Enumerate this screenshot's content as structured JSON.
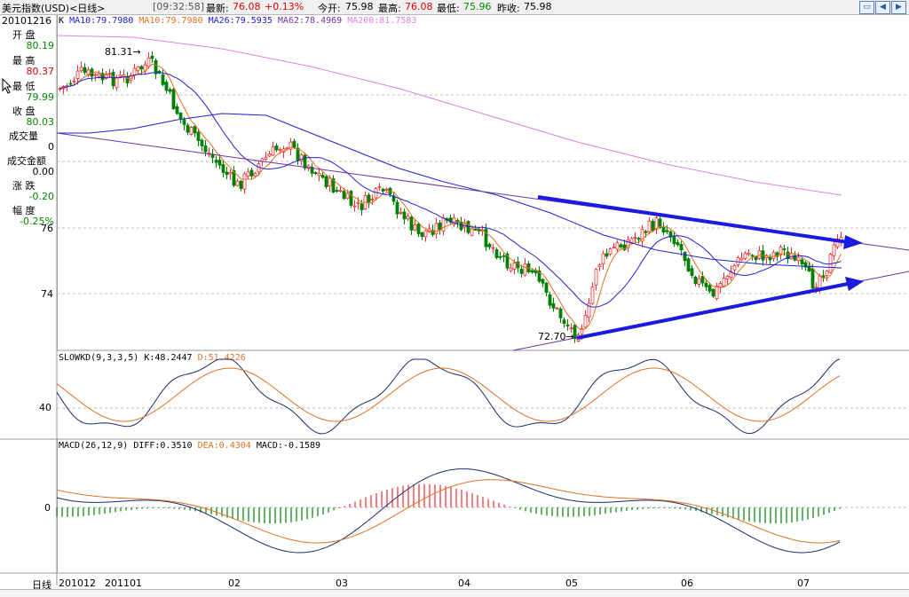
{
  "header": {
    "title": "美元指数(USD)<日线>",
    "time": "[09:32:58]",
    "latest_label": "最新:",
    "latest": "76.08",
    "change": "+0.13%",
    "open_label": "今开:",
    "open": "75.98",
    "high_label": "最高:",
    "high": "76.08",
    "low_label": "最低:",
    "low": "75.96",
    "prev_label": "昨收:",
    "prev": "75.98"
  },
  "ma_legend": {
    "k": "K",
    "ma10a": "MA10:79.7980",
    "ma10b": "MA10:79.7980",
    "ma26": "MA26:79.5935",
    "ma62": "MA62:78.4969",
    "ma200": "MA200:81.7583"
  },
  "left_panel": {
    "date": "20101216",
    "open_label": "开    盘",
    "open": "80.19",
    "high_label": "最    高",
    "high": "80.37",
    "low_label": "最    低",
    "low": "79.99",
    "close_label": "收    盘",
    "close": "80.03",
    "vol_label": "成交量",
    "vol": "0",
    "amount_label": "成交金额",
    "amount": "0.00",
    "chg_label": "涨    跌",
    "chg": "-0.20",
    "pct_label": "幅    度",
    "pct": "-0.25%"
  },
  "price_pane": {
    "y_ticks": [
      "76",
      "74"
    ],
    "annot_high": "81.31",
    "annot_low": "72.70"
  },
  "kd_pane": {
    "title": "SLOWKD(9,3,3,5)",
    "k": "K:48.2447",
    "d": "D:51.4226",
    "y_tick": "40"
  },
  "macd_pane": {
    "title": "MACD(26,12,9)",
    "diff": "DIFF:0.3510",
    "dea": "DEA:0.4304",
    "macd": "MACD:-0.1589",
    "y_tick": "0"
  },
  "x_axis": {
    "period": "日线",
    "labels": [
      "201012",
      "201101",
      "02",
      "03",
      "04",
      "05",
      "06",
      "07"
    ]
  },
  "colors": {
    "up": "#ee3030",
    "down": "#008000",
    "ma10": "#e07020",
    "ma26": "#2020d0",
    "ma62": "#7030a0",
    "ma200": "#e080e0",
    "trend": "#1a1ae0"
  },
  "window_controls": [
    "restore-icon",
    "back-icon",
    "forward-icon"
  ]
}
